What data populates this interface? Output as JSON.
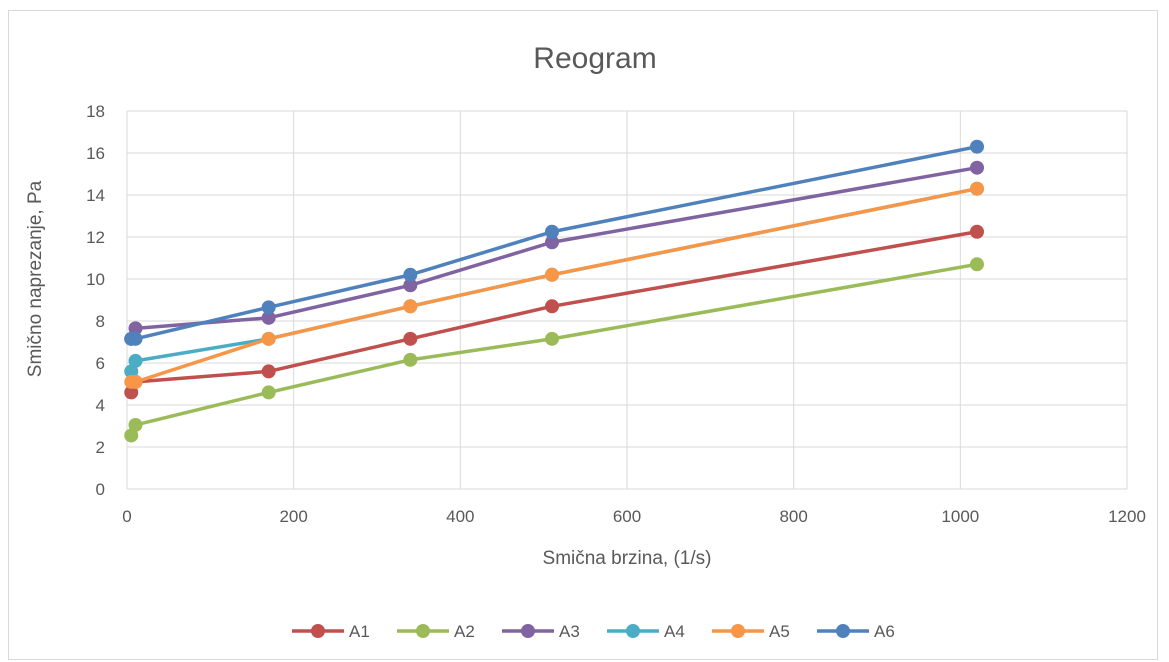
{
  "chart_data": {
    "type": "line",
    "title": "Reogram",
    "xlabel": "Smična brzina, (1/s)",
    "ylabel": "Smično naprezanje, Pa",
    "xlim": [
      0,
      1200
    ],
    "ylim": [
      0,
      18
    ],
    "xticks": [
      0,
      200,
      400,
      600,
      800,
      1000,
      1200
    ],
    "yticks": [
      0,
      2,
      4,
      6,
      8,
      10,
      12,
      14,
      16,
      18
    ],
    "grid": true,
    "legend_position": "bottom",
    "x": [
      5.1,
      10.2,
      170,
      340,
      510,
      1020
    ],
    "series": [
      {
        "name": "A1",
        "color": "#c0504d",
        "values": [
          4.6,
          5.1,
          5.6,
          7.15,
          8.7,
          12.25
        ]
      },
      {
        "name": "A2",
        "color": "#9bbb59",
        "values": [
          2.55,
          3.05,
          4.6,
          6.15,
          7.15,
          10.7
        ]
      },
      {
        "name": "A3",
        "color": "#8064a2",
        "values": [
          7.15,
          7.65,
          8.15,
          9.7,
          11.75,
          15.3
        ]
      },
      {
        "name": "A4",
        "color": "#4bacc6",
        "values": [
          5.6,
          6.1,
          7.15,
          8.7,
          10.2,
          14.3
        ]
      },
      {
        "name": "A5",
        "color": "#f79646",
        "values": [
          5.1,
          5.1,
          7.15,
          8.7,
          10.2,
          14.3
        ]
      },
      {
        "name": "A6",
        "color": "#4f81bd",
        "values": [
          7.15,
          7.15,
          8.65,
          10.2,
          12.25,
          16.3
        ]
      }
    ]
  }
}
